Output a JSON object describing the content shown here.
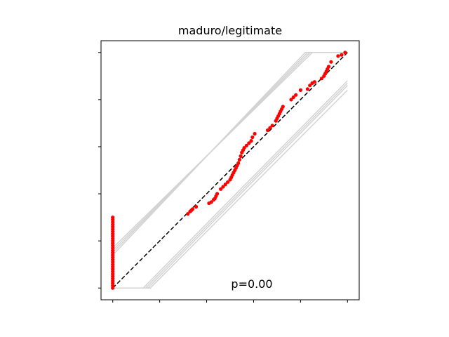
{
  "chart_data": {
    "type": "scatter",
    "title": "maduro/legitimate",
    "xlabel": "",
    "ylabel": "",
    "xlim": [
      -0.05,
      1.05
    ],
    "ylim": [
      -0.05,
      1.05
    ],
    "xticks": [
      0,
      0.2,
      0.4,
      0.6,
      0.8,
      1.0
    ],
    "yticks": [
      0,
      0.2,
      0.4,
      0.6,
      0.8,
      1.0
    ],
    "tick_labels_visible": false,
    "grid": false,
    "annotation": "p=0.00",
    "reference_line": {
      "x": [
        0,
        1
      ],
      "y": [
        0,
        1
      ],
      "color": "#000000",
      "style": "dashed"
    },
    "bands": [
      {
        "x": [
          0,
          0.85,
          1.0
        ],
        "y": [
          0.17,
          1.0,
          1.0
        ],
        "color": "#d3d3d3"
      },
      {
        "x": [
          0,
          0.84,
          1.0
        ],
        "y": [
          0.16,
          1.0,
          1.0
        ],
        "color": "#d3d3d3"
      },
      {
        "x": [
          0,
          0.83,
          1.0
        ],
        "y": [
          0.15,
          1.0,
          1.0
        ],
        "color": "#d3d3d3"
      },
      {
        "x": [
          0,
          0.82,
          1.0
        ],
        "y": [
          0.14,
          1.0,
          1.0
        ],
        "color": "#d3d3d3"
      },
      {
        "x": [
          0,
          0.13,
          1.0
        ],
        "y": [
          0,
          0,
          0.88
        ],
        "color": "#d3d3d3"
      },
      {
        "x": [
          0,
          0.14,
          1.0
        ],
        "y": [
          0,
          0,
          0.87
        ],
        "color": "#d3d3d3"
      },
      {
        "x": [
          0,
          0.15,
          1.0
        ],
        "y": [
          0,
          0,
          0.86
        ],
        "color": "#d3d3d3"
      },
      {
        "x": [
          0,
          0.16,
          1.0
        ],
        "y": [
          0,
          0,
          0.84
        ],
        "color": "#d3d3d3"
      }
    ],
    "series": [
      {
        "color": "#ff0000",
        "points": [
          [
            0,
            0
          ],
          [
            0,
            0.01
          ],
          [
            0,
            0.02
          ],
          [
            0,
            0.03
          ],
          [
            0,
            0.04
          ],
          [
            0,
            0.05
          ],
          [
            0,
            0.06
          ],
          [
            0,
            0.07
          ],
          [
            0,
            0.08
          ],
          [
            0,
            0.09
          ],
          [
            0,
            0.1
          ],
          [
            0,
            0.11
          ],
          [
            0,
            0.12
          ],
          [
            0,
            0.13
          ],
          [
            0,
            0.14
          ],
          [
            0,
            0.15
          ],
          [
            0,
            0.16
          ],
          [
            0,
            0.17
          ],
          [
            0,
            0.18
          ],
          [
            0,
            0.19
          ],
          [
            0,
            0.2
          ],
          [
            0,
            0.21
          ],
          [
            0,
            0.22
          ],
          [
            0,
            0.23
          ],
          [
            0,
            0.24
          ],
          [
            0,
            0.25
          ],
          [
            0,
            0.26
          ],
          [
            0,
            0.27
          ],
          [
            0,
            0.28
          ],
          [
            0,
            0.29
          ],
          [
            0,
            0.3
          ],
          [
            0.32,
            0.315
          ],
          [
            0.33,
            0.325
          ],
          [
            0.335,
            0.33
          ],
          [
            0.34,
            0.335
          ],
          [
            0.355,
            0.345
          ],
          [
            0.41,
            0.36
          ],
          [
            0.42,
            0.365
          ],
          [
            0.43,
            0.375
          ],
          [
            0.435,
            0.38
          ],
          [
            0.44,
            0.39
          ],
          [
            0.445,
            0.4
          ],
          [
            0.46,
            0.42
          ],
          [
            0.47,
            0.43
          ],
          [
            0.48,
            0.44
          ],
          [
            0.49,
            0.45
          ],
          [
            0.5,
            0.46
          ],
          [
            0.505,
            0.47
          ],
          [
            0.51,
            0.48
          ],
          [
            0.515,
            0.49
          ],
          [
            0.52,
            0.5
          ],
          [
            0.525,
            0.51
          ],
          [
            0.53,
            0.52
          ],
          [
            0.535,
            0.53
          ],
          [
            0.54,
            0.545
          ],
          [
            0.545,
            0.56
          ],
          [
            0.55,
            0.575
          ],
          [
            0.555,
            0.585
          ],
          [
            0.56,
            0.595
          ],
          [
            0.57,
            0.605
          ],
          [
            0.58,
            0.615
          ],
          [
            0.59,
            0.625
          ],
          [
            0.595,
            0.64
          ],
          [
            0.605,
            0.655
          ],
          [
            0.66,
            0.67
          ],
          [
            0.67,
            0.68
          ],
          [
            0.68,
            0.69
          ],
          [
            0.695,
            0.71
          ],
          [
            0.7,
            0.72
          ],
          [
            0.705,
            0.73
          ],
          [
            0.71,
            0.74
          ],
          [
            0.715,
            0.75
          ],
          [
            0.72,
            0.76
          ],
          [
            0.725,
            0.77
          ],
          [
            0.76,
            0.8
          ],
          [
            0.77,
            0.81
          ],
          [
            0.78,
            0.82
          ],
          [
            0.8,
            0.84
          ],
          [
            0.83,
            0.845
          ],
          [
            0.84,
            0.86
          ],
          [
            0.85,
            0.87
          ],
          [
            0.86,
            0.875
          ],
          [
            0.89,
            0.89
          ],
          [
            0.9,
            0.9
          ],
          [
            0.905,
            0.91
          ],
          [
            0.91,
            0.92
          ],
          [
            0.915,
            0.93
          ],
          [
            0.92,
            0.94
          ],
          [
            0.93,
            0.96
          ],
          [
            0.96,
            0.985
          ],
          [
            0.975,
            0.99
          ],
          [
            0.99,
            1.0
          ]
        ]
      }
    ]
  }
}
